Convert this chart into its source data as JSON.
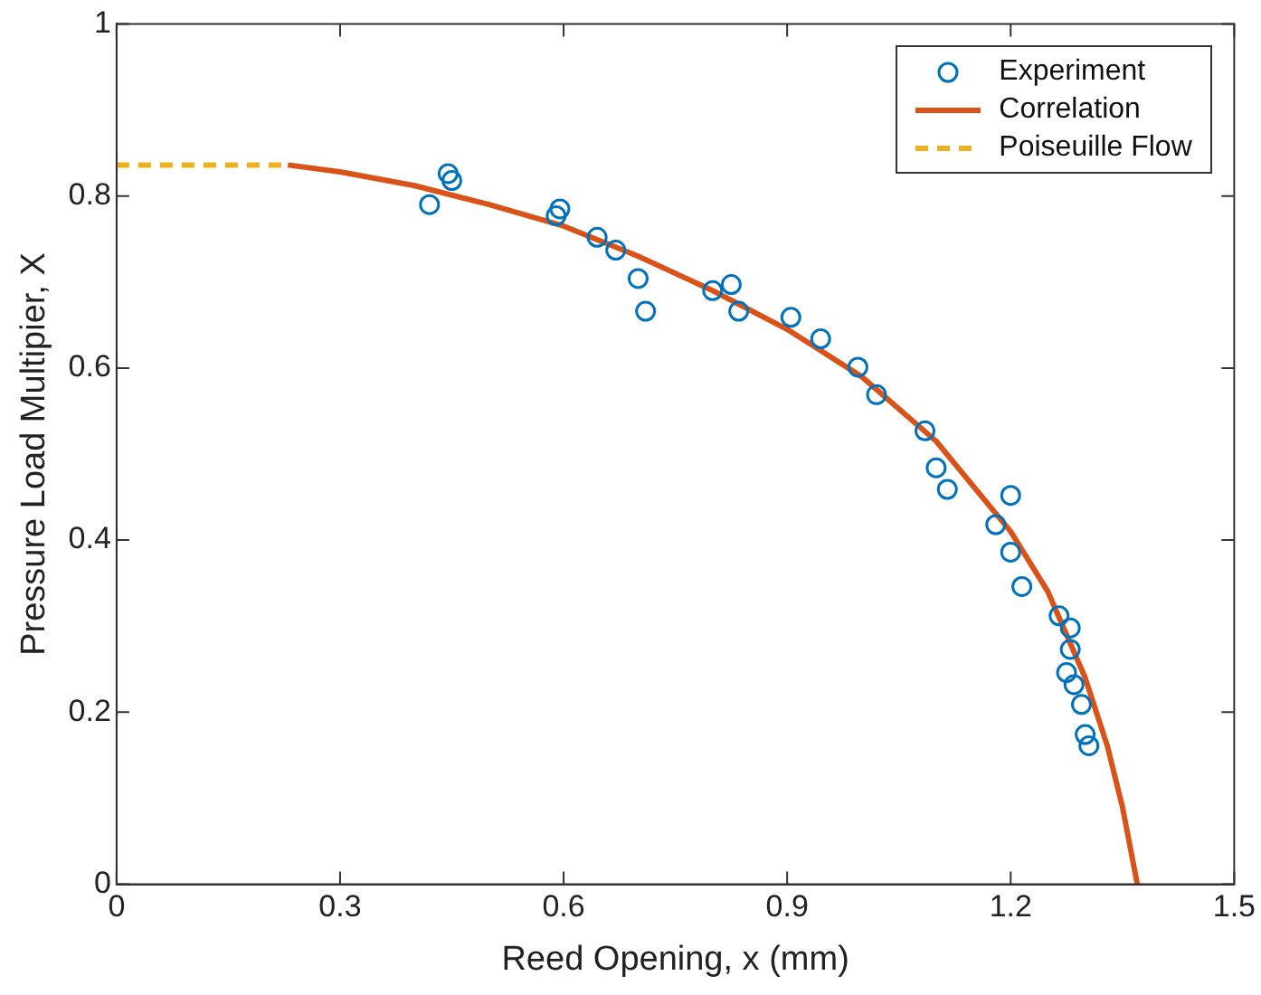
{
  "chart_data": {
    "type": "scatter",
    "xlabel": "Reed Opening, x (mm)",
    "ylabel": "Pressure Load Multipier, X",
    "xlim": [
      0,
      1.5
    ],
    "xticks": [
      0,
      0.3,
      0.6,
      0.9,
      1.2,
      1.5
    ],
    "ylim": [
      0,
      1
    ],
    "yticks": [
      0,
      0.2,
      0.4,
      0.6,
      0.8,
      1
    ],
    "grid": false,
    "legend": "top right",
    "series": [
      {
        "name": "Experiment",
        "marker": "circle",
        "color": "#0072bd",
        "x": [
          0.42,
          0.445,
          0.45,
          0.59,
          0.595,
          0.645,
          0.67,
          0.7,
          0.71,
          0.8,
          0.825,
          0.835,
          0.905,
          0.945,
          0.995,
          1.02,
          1.085,
          1.1,
          1.115,
          1.18,
          1.2,
          1.2,
          1.215,
          1.265,
          1.28,
          1.275,
          1.28,
          1.285,
          1.295,
          1.3,
          1.305
        ],
        "values": [
          0.79,
          0.826,
          0.818,
          0.777,
          0.785,
          0.752,
          0.737,
          0.704,
          0.666,
          0.69,
          0.697,
          0.666,
          0.659,
          0.634,
          0.601,
          0.569,
          0.527,
          0.484,
          0.459,
          0.418,
          0.452,
          0.386,
          0.346,
          0.312,
          0.298,
          0.246,
          0.273,
          0.232,
          0.209,
          0.174,
          0.161
        ]
      },
      {
        "name": "Correlation",
        "type": "line",
        "marker": "none",
        "line_style": "solid",
        "color": "#d95319",
        "x": [
          0.23,
          0.3,
          0.4,
          0.5,
          0.6,
          0.7,
          0.8,
          0.9,
          1.0,
          1.1,
          1.2,
          1.25,
          1.3,
          1.33,
          1.35,
          1.37
        ],
        "values": [
          0.836,
          0.828,
          0.812,
          0.79,
          0.765,
          0.73,
          0.69,
          0.645,
          0.59,
          0.515,
          0.41,
          0.34,
          0.24,
          0.16,
          0.09,
          0
        ]
      },
      {
        "name": "Poiseuille Flow",
        "type": "line",
        "marker": "none",
        "line_style": "dashed",
        "color": "#edb120",
        "x": [
          0,
          0.23
        ],
        "values": [
          0.836,
          0.836
        ]
      }
    ]
  }
}
